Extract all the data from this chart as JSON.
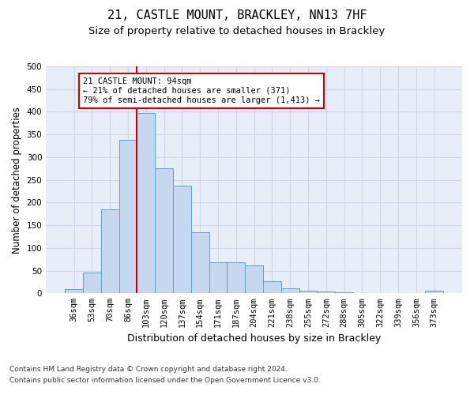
{
  "title1": "21, CASTLE MOUNT, BRACKLEY, NN13 7HF",
  "title2": "Size of property relative to detached houses in Brackley",
  "xlabel": "Distribution of detached houses by size in Brackley",
  "ylabel": "Number of detached properties",
  "footnote1": "Contains HM Land Registry data © Crown copyright and database right 2024.",
  "footnote2": "Contains public sector information licensed under the Open Government Licence v3.0.",
  "bar_labels": [
    "36sqm",
    "53sqm",
    "70sqm",
    "86sqm",
    "103sqm",
    "120sqm",
    "137sqm",
    "154sqm",
    "171sqm",
    "187sqm",
    "204sqm",
    "221sqm",
    "238sqm",
    "255sqm",
    "272sqm",
    "288sqm",
    "305sqm",
    "322sqm",
    "339sqm",
    "356sqm",
    "373sqm"
  ],
  "bar_values": [
    9,
    46,
    185,
    338,
    397,
    275,
    238,
    135,
    69,
    69,
    62,
    26,
    11,
    6,
    4,
    3,
    0,
    0,
    0,
    0,
    5
  ],
  "bar_color": "#c5d8f0",
  "bar_edge_color": "#5a9fd4",
  "vline_x": 3.5,
  "vline_color": "#cc0000",
  "annotation_text": "21 CASTLE MOUNT: 94sqm\n← 21% of detached houses are smaller (371)\n79% of semi-detached houses are larger (1,413) →",
  "annotation_box_color": "#ffffff",
  "annotation_box_edge": "#cc0000",
  "ylim": [
    0,
    500
  ],
  "yticks": [
    0,
    50,
    100,
    150,
    200,
    250,
    300,
    350,
    400,
    450,
    500
  ],
  "grid_color": "#d0d8e8",
  "bg_color": "#e8eef8",
  "title1_fontsize": 11,
  "title2_fontsize": 9.5,
  "axis_label_fontsize": 8.5,
  "tick_fontsize": 7.5,
  "footnote_fontsize": 6.5
}
